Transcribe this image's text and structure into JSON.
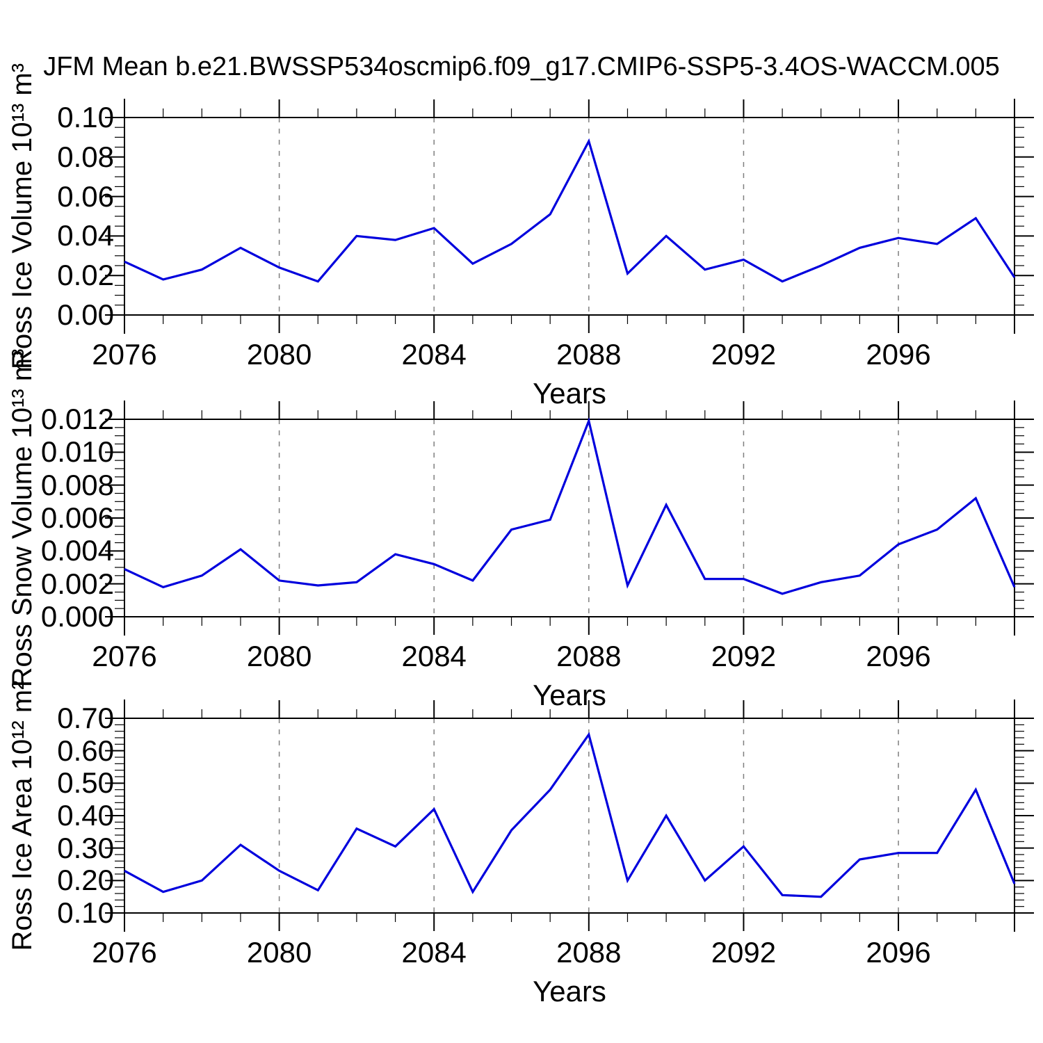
{
  "title": "JFM Mean b.e21.BWSSP534oscmip6.f09_g17.CMIP6-SSP5-3.4OS-WACCM.005",
  "colors": {
    "line": "#0000dd",
    "axis": "#000000",
    "gridline": "#7f7f7f",
    "background": "#ffffff",
    "text": "#000000"
  },
  "chart_data": [
    {
      "type": "line",
      "name": "ross-ice-volume",
      "ylabel": "Ross Ice Volume 10¹³ m³",
      "xlabel": "Years",
      "x": [
        2076,
        2077,
        2078,
        2079,
        2080,
        2081,
        2082,
        2083,
        2084,
        2085,
        2086,
        2087,
        2088,
        2089,
        2090,
        2091,
        2092,
        2093,
        2094,
        2095,
        2096,
        2097,
        2098,
        2099
      ],
      "values": [
        0.027,
        0.018,
        0.023,
        0.034,
        0.024,
        0.017,
        0.04,
        0.038,
        0.044,
        0.026,
        0.036,
        0.051,
        0.088,
        0.021,
        0.04,
        0.023,
        0.028,
        0.017,
        0.025,
        0.034,
        0.039,
        0.036,
        0.049,
        0.019
      ],
      "xlim": [
        2076,
        2099
      ],
      "ylim": [
        0.0,
        0.1
      ],
      "ytick_values": [
        0.0,
        0.02,
        0.04,
        0.06,
        0.08,
        0.1
      ],
      "ytick_labels": [
        "0.00",
        "0.02",
        "0.04",
        "0.06",
        "0.08",
        "0.10"
      ],
      "y_minor_step": 0.005,
      "xtick_values": [
        2076,
        2080,
        2084,
        2088,
        2092,
        2096
      ],
      "xtick_labels": [
        "2076",
        "2080",
        "2084",
        "2088",
        "2092",
        "2096"
      ],
      "x_minor_step": 1,
      "grid_x": [
        2080,
        2084,
        2088,
        2092,
        2096
      ],
      "grid_on": true,
      "legend": "none"
    },
    {
      "type": "line",
      "name": "ross-snow-volume",
      "ylabel": "Ross Snow Volume 10¹³ m³",
      "xlabel": "Years",
      "x": [
        2076,
        2077,
        2078,
        2079,
        2080,
        2081,
        2082,
        2083,
        2084,
        2085,
        2086,
        2087,
        2088,
        2089,
        2090,
        2091,
        2092,
        2093,
        2094,
        2095,
        2096,
        2097,
        2098,
        2099
      ],
      "values": [
        0.0029,
        0.0018,
        0.0025,
        0.0041,
        0.0022,
        0.0019,
        0.0021,
        0.0038,
        0.0032,
        0.0022,
        0.0053,
        0.0059,
        0.0119,
        0.0019,
        0.0068,
        0.0023,
        0.0023,
        0.0014,
        0.0021,
        0.0025,
        0.0044,
        0.0053,
        0.0072,
        0.0018
      ],
      "xlim": [
        2076,
        2099
      ],
      "ylim": [
        0.0,
        0.012
      ],
      "ytick_values": [
        0.0,
        0.002,
        0.004,
        0.006,
        0.008,
        0.01,
        0.012
      ],
      "ytick_labels": [
        "0.000",
        "0.002",
        "0.004",
        "0.006",
        "0.008",
        "0.010",
        "0.012"
      ],
      "y_minor_step": 0.0005,
      "xtick_values": [
        2076,
        2080,
        2084,
        2088,
        2092,
        2096
      ],
      "xtick_labels": [
        "2076",
        "2080",
        "2084",
        "2088",
        "2092",
        "2096"
      ],
      "x_minor_step": 1,
      "grid_x": [
        2080,
        2084,
        2088,
        2092,
        2096
      ],
      "grid_on": true,
      "legend": "none"
    },
    {
      "type": "line",
      "name": "ross-ice-area",
      "ylabel": "Ross Ice Area 10¹² m²",
      "xlabel": "Years",
      "x": [
        2076,
        2077,
        2078,
        2079,
        2080,
        2081,
        2082,
        2083,
        2084,
        2085,
        2086,
        2087,
        2088,
        2089,
        2090,
        2091,
        2092,
        2093,
        2094,
        2095,
        2096,
        2097,
        2098,
        2099
      ],
      "values": [
        0.23,
        0.165,
        0.2,
        0.31,
        0.23,
        0.17,
        0.36,
        0.305,
        0.42,
        0.165,
        0.355,
        0.48,
        0.65,
        0.2,
        0.4,
        0.2,
        0.305,
        0.155,
        0.15,
        0.265,
        0.285,
        0.285,
        0.48,
        0.19
      ],
      "xlim": [
        2076,
        2099
      ],
      "ylim": [
        0.1,
        0.7
      ],
      "ytick_values": [
        0.1,
        0.2,
        0.3,
        0.4,
        0.5,
        0.6,
        0.7
      ],
      "ytick_labels": [
        "0.10",
        "0.20",
        "0.30",
        "0.40",
        "0.50",
        "0.60",
        "0.70"
      ],
      "y_minor_step": 0.02,
      "xtick_values": [
        2076,
        2080,
        2084,
        2088,
        2092,
        2096
      ],
      "xtick_labels": [
        "2076",
        "2080",
        "2084",
        "2088",
        "2092",
        "2096"
      ],
      "x_minor_step": 1,
      "grid_x": [
        2080,
        2084,
        2088,
        2092,
        2096
      ],
      "grid_on": true,
      "legend": "none"
    }
  ]
}
